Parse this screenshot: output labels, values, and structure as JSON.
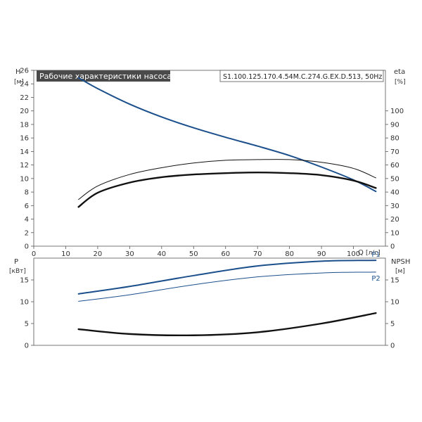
{
  "chart_data": [
    {
      "type": "line",
      "panel": "top",
      "title": "Рабочие характеристики насоса",
      "model_code": "S1.100.125.170.4.54M.C.274.G.EX.D.513, 50Hz",
      "left_axis": {
        "name": "H",
        "unit": "[м]",
        "range": [
          0,
          26
        ],
        "ticks": [
          0,
          2,
          4,
          6,
          8,
          10,
          12,
          14,
          16,
          18,
          20,
          22,
          24,
          26
        ]
      },
      "right_axis": {
        "name": "eta",
        "unit": "[%]",
        "range": [
          0,
          130
        ],
        "ticks": [
          0,
          10,
          20,
          30,
          40,
          50,
          60,
          70,
          80,
          90,
          100
        ]
      },
      "x_axis": {
        "name": "Q",
        "unit": "[л/с]",
        "range": [
          0,
          110
        ],
        "ticks": [
          0,
          10,
          20,
          30,
          40,
          50,
          60,
          70,
          80,
          90,
          100
        ]
      },
      "grid": false,
      "series": [
        {
          "axis": "left",
          "color": "#1b4f8c",
          "width": 2,
          "points": [
            [
              14,
              24.9
            ],
            [
              20,
              23.3
            ],
            [
              30,
              21.0
            ],
            [
              40,
              19.1
            ],
            [
              50,
              17.5
            ],
            [
              60,
              16.1
            ],
            [
              70,
              14.8
            ],
            [
              80,
              13.4
            ],
            [
              90,
              11.7
            ],
            [
              100,
              9.8
            ],
            [
              107,
              8.1
            ]
          ]
        },
        {
          "axis": "left",
          "color": "#111111",
          "width": 2.4,
          "points": [
            [
              14,
              5.8
            ],
            [
              20,
              7.9
            ],
            [
              30,
              9.4
            ],
            [
              40,
              10.2
            ],
            [
              50,
              10.6
            ],
            [
              60,
              10.8
            ],
            [
              70,
              10.9
            ],
            [
              80,
              10.8
            ],
            [
              90,
              10.5
            ],
            [
              100,
              9.7
            ],
            [
              107,
              8.6
            ]
          ]
        },
        {
          "axis": "left",
          "color": "#111111",
          "width": 1,
          "points": [
            [
              14,
              6.9
            ],
            [
              20,
              8.9
            ],
            [
              30,
              10.6
            ],
            [
              40,
              11.6
            ],
            [
              50,
              12.3
            ],
            [
              60,
              12.7
            ],
            [
              70,
              12.8
            ],
            [
              80,
              12.8
            ],
            [
              90,
              12.4
            ],
            [
              100,
              11.5
            ],
            [
              107,
              10.1
            ]
          ]
        }
      ]
    },
    {
      "type": "line",
      "panel": "bottom",
      "left_axis": {
        "name": "P",
        "unit": "[кВт]",
        "range": [
          0,
          20
        ],
        "ticks": [
          0,
          5,
          10,
          15
        ]
      },
      "right_axis": {
        "name": "NPSH",
        "unit": "[м]",
        "range": [
          0,
          20
        ],
        "ticks": [
          0,
          5,
          10,
          15
        ]
      },
      "x_axis": {
        "range": [
          0,
          110
        ]
      },
      "grid": false,
      "series": [
        {
          "name": "P1",
          "axis": "left",
          "color": "#1b4f8c",
          "width": 2,
          "points": [
            [
              14,
              11.8
            ],
            [
              30,
              13.5
            ],
            [
              50,
              16.0
            ],
            [
              70,
              18.2
            ],
            [
              90,
              19.3
            ],
            [
              107,
              19.5
            ]
          ]
        },
        {
          "name": "P2",
          "axis": "left",
          "color": "#1b4f8c",
          "width": 1,
          "points": [
            [
              14,
              10.1
            ],
            [
              30,
              11.6
            ],
            [
              50,
              13.9
            ],
            [
              70,
              15.7
            ],
            [
              90,
              16.6
            ],
            [
              107,
              16.8
            ]
          ]
        },
        {
          "axis": "right",
          "color": "#111111",
          "width": 2.4,
          "points": [
            [
              14,
              3.7
            ],
            [
              30,
              2.6
            ],
            [
              50,
              2.3
            ],
            [
              70,
              3.0
            ],
            [
              90,
              5.0
            ],
            [
              107,
              7.4
            ]
          ]
        }
      ]
    }
  ]
}
